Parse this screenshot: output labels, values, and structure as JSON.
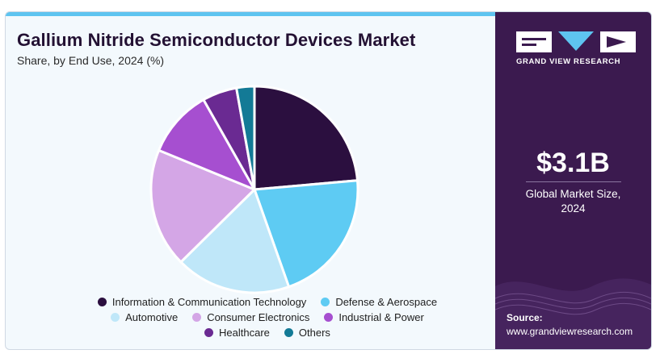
{
  "header": {
    "title": "Gallium Nitride Semiconductor Devices Market",
    "subtitle": "Share, by End Use, 2024 (%)"
  },
  "brand": {
    "name": "GRAND VIEW RESEARCH",
    "logo_icon": "gvr-logo-icon"
  },
  "sidebar": {
    "market_size": "$3.1B",
    "market_label_line1": "Global Market Size,",
    "market_label_line2": "2024",
    "source_label": "Source:",
    "source_url": "www.grandviewresearch.com"
  },
  "colors": {
    "sidebar_bg": "#3b1a4f",
    "panel_bg": "#f3f9fd",
    "accent_bar": "#5ec4f0"
  },
  "chart_data": {
    "type": "pie",
    "title": "Gallium Nitride Semiconductor Devices Market",
    "subtitle": "Share, by End Use, 2024 (%)",
    "legend_position": "bottom",
    "categories": [
      "Information & Communication Technology",
      "Defense & Aerospace",
      "Automotive",
      "Consumer Electronics",
      "Industrial & Power",
      "Healthcare",
      "Others"
    ],
    "values": [
      23.6,
      21.0,
      18.0,
      18.6,
      10.6,
      5.4,
      2.8
    ],
    "colors": [
      "#2b0f3f",
      "#5ecbf3",
      "#bfe7f9",
      "#d4a6e6",
      "#a64fd0",
      "#6a2a92",
      "#137a96"
    ]
  }
}
